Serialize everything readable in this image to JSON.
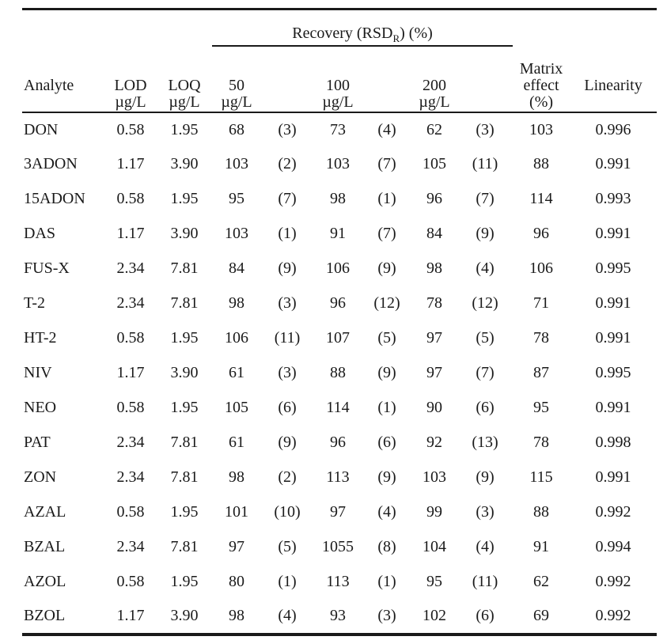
{
  "page": {
    "background": "#ffffff",
    "text_color": "#1a1a1a",
    "rule_color": "#1a1a1a"
  },
  "table": {
    "header": {
      "recovery_group": {
        "prefix": "Recovery (RSD",
        "subscript": "R",
        "suffix": ") (%)"
      },
      "analyte": {
        "label": "Analyte",
        "unit": ""
      },
      "lod": {
        "label": "LOD",
        "unit": "µg/L"
      },
      "loq": {
        "label": "LOQ",
        "unit": "µg/L"
      },
      "r50": {
        "label": "50",
        "unit": "µg/L"
      },
      "r100": {
        "label": "100",
        "unit": "µg/L"
      },
      "r200": {
        "label": "200",
        "unit": "µg/L"
      },
      "matrix_effect": {
        "line1": "Matrix",
        "line2": "effect",
        "line3": "(%)"
      },
      "linearity": {
        "label": "Linearity",
        "unit": ""
      }
    },
    "rows": [
      {
        "analyte": "DON",
        "lod": "0.58",
        "loq": "1.95",
        "r50": "68",
        "r50_rsd": "(3)",
        "r100": "73",
        "r100_rsd": "(4)",
        "r200": "62",
        "r200_rsd": "(3)",
        "matrix_effect": "103",
        "linearity": "0.996"
      },
      {
        "analyte": "3ADON",
        "lod": "1.17",
        "loq": "3.90",
        "r50": "103",
        "r50_rsd": "(2)",
        "r100": "103",
        "r100_rsd": "(7)",
        "r200": "105",
        "r200_rsd": "(11)",
        "matrix_effect": "88",
        "linearity": "0.991"
      },
      {
        "analyte": "15ADON",
        "lod": "0.58",
        "loq": "1.95",
        "r50": "95",
        "r50_rsd": "(7)",
        "r100": "98",
        "r100_rsd": "(1)",
        "r200": "96",
        "r200_rsd": "(7)",
        "matrix_effect": "114",
        "linearity": "0.993"
      },
      {
        "analyte": "DAS",
        "lod": "1.17",
        "loq": "3.90",
        "r50": "103",
        "r50_rsd": "(1)",
        "r100": "91",
        "r100_rsd": "(7)",
        "r200": "84",
        "r200_rsd": "(9)",
        "matrix_effect": "96",
        "linearity": "0.991"
      },
      {
        "analyte": "FUS-X",
        "lod": "2.34",
        "loq": "7.81",
        "r50": "84",
        "r50_rsd": "(9)",
        "r100": "106",
        "r100_rsd": "(9)",
        "r200": "98",
        "r200_rsd": "(4)",
        "matrix_effect": "106",
        "linearity": "0.995"
      },
      {
        "analyte": "T-2",
        "lod": "2.34",
        "loq": "7.81",
        "r50": "98",
        "r50_rsd": "(3)",
        "r100": "96",
        "r100_rsd": "(12)",
        "r200": "78",
        "r200_rsd": "(12)",
        "matrix_effect": "71",
        "linearity": "0.991"
      },
      {
        "analyte": "HT-2",
        "lod": "0.58",
        "loq": "1.95",
        "r50": "106",
        "r50_rsd": "(11)",
        "r100": "107",
        "r100_rsd": "(5)",
        "r200": "97",
        "r200_rsd": "(5)",
        "matrix_effect": "78",
        "linearity": "0.991"
      },
      {
        "analyte": "NIV",
        "lod": "1.17",
        "loq": "3.90",
        "r50": "61",
        "r50_rsd": "(3)",
        "r100": "88",
        "r100_rsd": "(9)",
        "r200": "97",
        "r200_rsd": "(7)",
        "matrix_effect": "87",
        "linearity": "0.995"
      },
      {
        "analyte": "NEO",
        "lod": "0.58",
        "loq": "1.95",
        "r50": "105",
        "r50_rsd": "(6)",
        "r100": "114",
        "r100_rsd": "(1)",
        "r200": "90",
        "r200_rsd": "(6)",
        "matrix_effect": "95",
        "linearity": "0.991"
      },
      {
        "analyte": "PAT",
        "lod": "2.34",
        "loq": "7.81",
        "r50": "61",
        "r50_rsd": "(9)",
        "r100": "96",
        "r100_rsd": "(6)",
        "r200": "92",
        "r200_rsd": "(13)",
        "matrix_effect": "78",
        "linearity": "0.998"
      },
      {
        "analyte": "ZON",
        "lod": "2.34",
        "loq": "7.81",
        "r50": "98",
        "r50_rsd": "(2)",
        "r100": "113",
        "r100_rsd": "(9)",
        "r200": "103",
        "r200_rsd": "(9)",
        "matrix_effect": "115",
        "linearity": "0.991"
      },
      {
        "analyte": "AZAL",
        "lod": "0.58",
        "loq": "1.95",
        "r50": "101",
        "r50_rsd": "(10)",
        "r100": "97",
        "r100_rsd": "(4)",
        "r200": "99",
        "r200_rsd": "(3)",
        "matrix_effect": "88",
        "linearity": "0.992"
      },
      {
        "analyte": "BZAL",
        "lod": "2.34",
        "loq": "7.81",
        "r50": "97",
        "r50_rsd": "(5)",
        "r100": "1055",
        "r100_rsd": "(8)",
        "r200": "104",
        "r200_rsd": "(4)",
        "matrix_effect": "91",
        "linearity": "0.994"
      },
      {
        "analyte": "AZOL",
        "lod": "0.58",
        "loq": "1.95",
        "r50": "80",
        "r50_rsd": "(1)",
        "r100": "113",
        "r100_rsd": "(1)",
        "r200": "95",
        "r200_rsd": "(11)",
        "matrix_effect": "62",
        "linearity": "0.992"
      },
      {
        "analyte": "BZOL",
        "lod": "1.17",
        "loq": "3.90",
        "r50": "98",
        "r50_rsd": "(4)",
        "r100": "93",
        "r100_rsd": "(3)",
        "r200": "102",
        "r200_rsd": "(6)",
        "matrix_effect": "69",
        "linearity": "0.992"
      }
    ]
  }
}
